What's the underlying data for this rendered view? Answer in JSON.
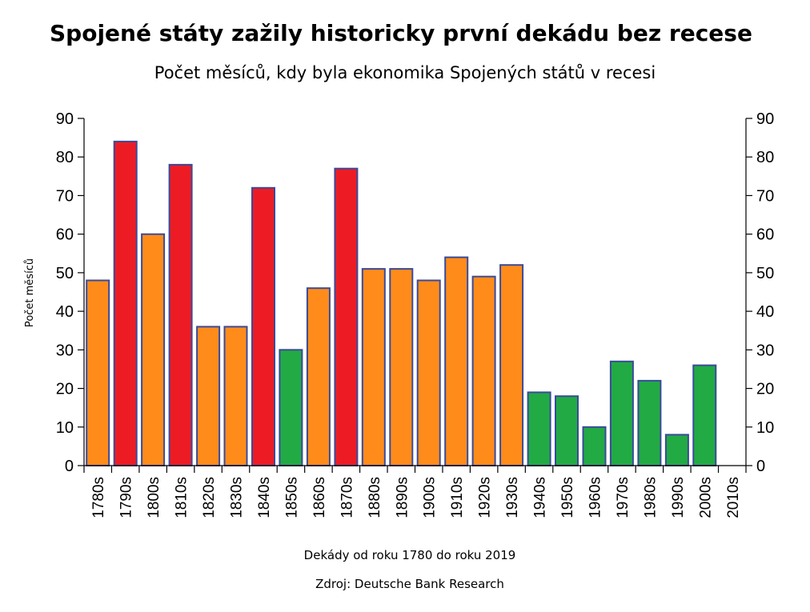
{
  "title": "Spojené státy zažily historicky první dekádu bez recese",
  "subtitle": "Počet měsíců, kdy byla ekonomika Spojených států v recesi",
  "source": "Zdroj: Deutsche Bank Research",
  "chart_data": {
    "type": "bar",
    "title": "Spojené státy zažily historicky první dekádu bez recese",
    "subtitle": "Počet měsíců, kdy byla ekonomika Spojených států v recesi",
    "xlabel": "Dekády od roku 1780 do roku 2019",
    "ylabel": "Počet měsíců",
    "ylim": [
      0,
      90
    ],
    "yticks": [
      0,
      10,
      20,
      30,
      40,
      50,
      60,
      70,
      80,
      90
    ],
    "secondary_y_axis": true,
    "grid": false,
    "legend": "none",
    "bar_outline_color": "#3a4a9a",
    "colors": {
      "orange": "#ff8c1a",
      "red": "#ed1c24",
      "green": "#22aa44"
    },
    "categories": [
      "1780s",
      "1790s",
      "1800s",
      "1810s",
      "1820s",
      "1830s",
      "1840s",
      "1850s",
      "1860s",
      "1870s",
      "1880s",
      "1890s",
      "1900s",
      "1910s",
      "1920s",
      "1930s",
      "1940s",
      "1950s",
      "1960s",
      "1970s",
      "1980s",
      "1990s",
      "2000s",
      "2010s"
    ],
    "values": [
      48,
      84,
      60,
      78,
      36,
      36,
      72,
      30,
      46,
      77,
      51,
      51,
      48,
      54,
      49,
      52,
      19,
      18,
      10,
      27,
      22,
      8,
      26,
      0
    ],
    "bar_colors": [
      "orange",
      "red",
      "orange",
      "red",
      "orange",
      "orange",
      "red",
      "green",
      "orange",
      "red",
      "orange",
      "orange",
      "orange",
      "orange",
      "orange",
      "orange",
      "green",
      "green",
      "green",
      "green",
      "green",
      "green",
      "green",
      "none"
    ]
  }
}
